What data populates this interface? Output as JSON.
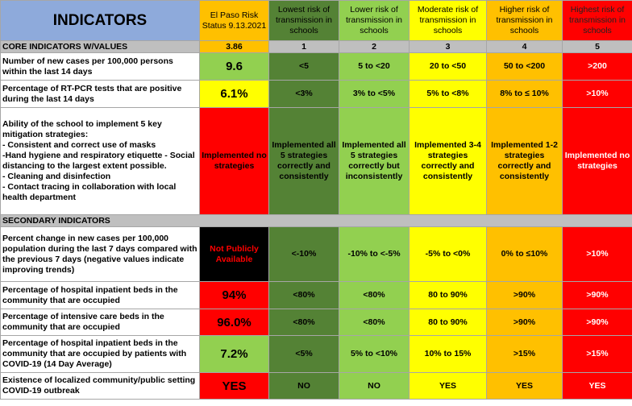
{
  "header": [
    "INDICATORS",
    "El Paso Risk Status 9.13.2021",
    "Lowest risk of transmission in schools",
    "Lower risk of transmission in schools",
    "Moderate risk of transmission in schools",
    "Higher  risk of transmission in schools",
    "Highest risk of transmission in schools"
  ],
  "sections": [
    {
      "title": "CORE INDICATORS W/VALUES",
      "values": [
        "3.86",
        "1",
        "2",
        "3",
        "4",
        "5"
      ],
      "rows": [
        {
          "indicator": "Number of new cases per 100,000 persons within the last 14 days",
          "status": "9.6",
          "status_color": "#92d050",
          "cells": [
            "<5",
            "5 to <20",
            "20 to <50",
            "50 to <200",
            ">200"
          ]
        },
        {
          "indicator": "Percentage of RT-PCR tests that are positive during the last 14 days",
          "status": "6.1%",
          "status_color": "#ffff00",
          "cells": [
            "<3%",
            "3% to <5%",
            "5% to <8%",
            "8% to ≤ 10%",
            ">10%"
          ]
        },
        {
          "indicator": "Ability of the school to implement 5 key mitigation strategies:",
          "list": [
            "- Consistent and correct use of masks",
            "-Hand hygiene and respiratory etiquette         - Social distancing to the largest extent possible.",
            "- Cleaning and disinfection",
            "- Contact tracing in collaboration with local health department"
          ],
          "status": "Implemented no strategies",
          "status_color": "#ff0000",
          "cells": [
            "Implemented all 5 strategies correctly and consistently",
            "Implemented all 5 strategies correctly but inconsistently",
            "Implemented 3-4 strategies correctly and consistently",
            "Implemented 1-2 strategies correctly and consistently",
            "Implemented no strategies"
          ]
        }
      ]
    },
    {
      "title": "SECONDARY INDICATORS",
      "rows": [
        {
          "indicator": "Percent change in new cases per 100,000 population during the last 7 days compared with the previous 7 days (negative values indicate improving trends)",
          "status": "Not Publicly Available",
          "status_color": "#000000",
          "status_text_color": "#ff0000",
          "cells": [
            "<-10%",
            "-10% to <-5%",
            "-5% to <0%",
            "0% to ≤10%",
            ">10%"
          ]
        },
        {
          "indicator": "Percentage of hospital inpatient beds in the community that are occupied",
          "status": "94%",
          "status_color": "#ff0000",
          "cells": [
            "<80%",
            "<80%",
            "80 to 90%",
            ">90%",
            ">90%"
          ]
        },
        {
          "indicator": "Percentage of intensive care beds in the community that are occupied",
          "status": "96.0%",
          "status_color": "#ff0000",
          "cells": [
            "<80%",
            "<80%",
            "80 to 90%",
            ">90%",
            ">90%"
          ]
        },
        {
          "indicator": "Percentage of hospital inpatient beds in the community that are occupied by patients with COVID-19 (14 Day Average)",
          "status": "7.2%",
          "status_color": "#92d050",
          "cells": [
            "<5%",
            "5% to <10%",
            "10% to 15%",
            ">15%",
            ">15%"
          ]
        },
        {
          "indicator": "Existence of localized community/public setting COVID-19 outbreak",
          "status": "YES",
          "status_color": "#ff0000",
          "cells": [
            "NO",
            "NO",
            "YES",
            "YES",
            "YES"
          ]
        }
      ]
    }
  ]
}
